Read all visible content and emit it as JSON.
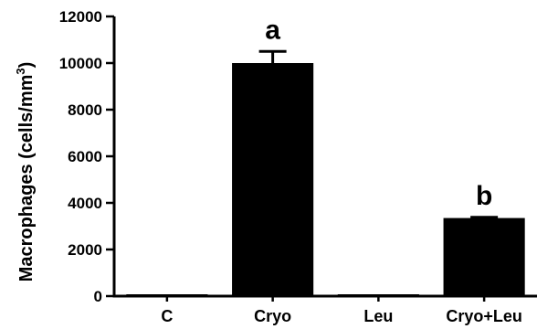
{
  "chart_data": {
    "type": "bar",
    "categories": [
      "C",
      "Cryo",
      "Leu",
      "Cryo+Leu"
    ],
    "values": [
      50,
      10000,
      40,
      3350
    ],
    "errors": [
      0,
      500,
      0,
      30
    ],
    "annotations": [
      "",
      "a",
      "",
      "b"
    ],
    "ylabel_main": "Macrophages (cells/mm",
    "ylabel_sup": "3",
    "ylabel_close": ")",
    "yticks": [
      "0",
      "2000",
      "4000",
      "6000",
      "8000",
      "10000",
      "12000"
    ],
    "ylim": [
      0,
      12000
    ],
    "grid": false,
    "bar_color": "#000000"
  }
}
